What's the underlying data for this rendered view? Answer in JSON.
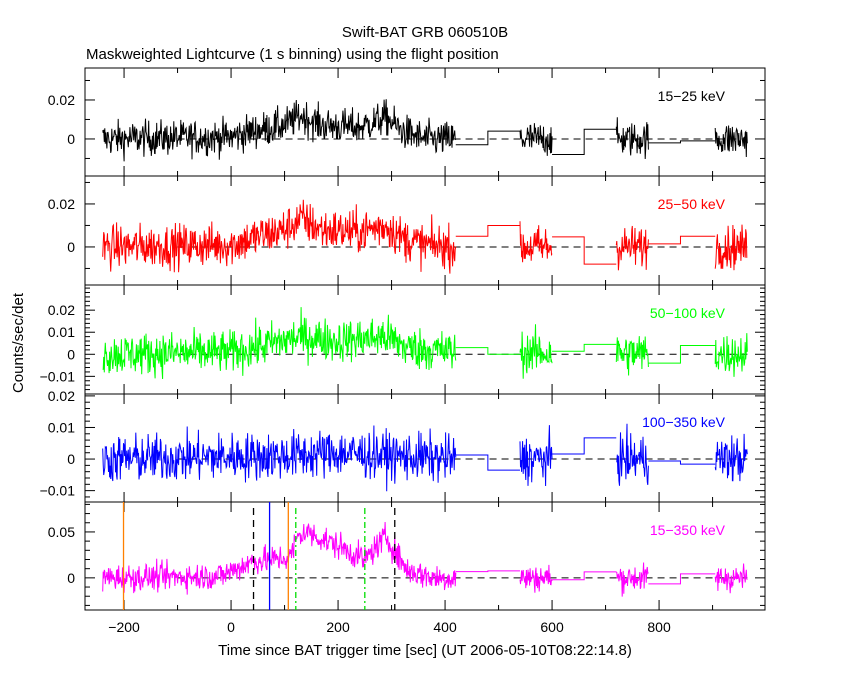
{
  "chart_data": {
    "type": "line",
    "title": "Swift-BAT GRB 060510B",
    "subtitle": "Maskweighted Lightcurve (1 s binning) using the flight position",
    "xlabel": "Time since BAT trigger time [sec] (UT 2006-05-10T08:22:14.8)",
    "ylabel": "Counts/sec/det",
    "xlim": [
      -273,
      998
    ],
    "x_major_ticks": [
      -200,
      0,
      200,
      400,
      600,
      800
    ],
    "x_tick_labels": [
      "−200",
      "0",
      "200",
      "400",
      "600",
      "800"
    ],
    "x_minor_step": 100,
    "binning_sec": 1,
    "data_chunks": [
      [
        -240,
        420
      ],
      [
        540,
        600
      ],
      [
        720,
        780
      ],
      [
        905,
        965
      ]
    ],
    "zero_line_range": [
      -100,
      965
    ],
    "panels": [
      {
        "label": "15−25 keV",
        "color": "#000000",
        "ylim": [
          -0.019,
          0.0364
        ],
        "y_major_ticks": [
          0,
          0.02
        ],
        "y_tick_labels": [
          "0",
          "0.02"
        ],
        "y_minor_step": 0.01,
        "profile": [
          [
            -240,
            0
          ],
          [
            0,
            0.001
          ],
          [
            40,
            0.004
          ],
          [
            100,
            0.007
          ],
          [
            130,
            0.012
          ],
          [
            170,
            0.007
          ],
          [
            240,
            0.006
          ],
          [
            290,
            0.011
          ],
          [
            320,
            0.004
          ],
          [
            360,
            0
          ],
          [
            420,
            0
          ],
          [
            965,
            0
          ]
        ],
        "noise": 0.0045,
        "steps": [
          [
            420,
            480,
            -0.003
          ],
          [
            480,
            540,
            0.004
          ],
          [
            600,
            660,
            -0.008
          ],
          [
            660,
            720,
            0.005
          ],
          [
            780,
            840,
            -0.002
          ],
          [
            840,
            905,
            -0.001
          ]
        ]
      },
      {
        "label": "25−50 keV",
        "color": "#ff0000",
        "ylim": [
          -0.0177,
          0.033
        ],
        "y_major_ticks": [
          0,
          0.02
        ],
        "y_tick_labels": [
          "0",
          "0.02"
        ],
        "y_minor_step": 0.01,
        "profile": [
          [
            -240,
            0
          ],
          [
            0,
            0.001
          ],
          [
            40,
            0.004
          ],
          [
            100,
            0.008
          ],
          [
            130,
            0.013
          ],
          [
            170,
            0.008
          ],
          [
            240,
            0.007
          ],
          [
            290,
            0.01
          ],
          [
            320,
            0.004
          ],
          [
            360,
            0.001
          ],
          [
            420,
            0
          ],
          [
            965,
            0
          ]
        ],
        "noise": 0.005,
        "steps": [
          [
            420,
            480,
            0.005
          ],
          [
            480,
            540,
            0.01
          ],
          [
            600,
            660,
            0.0047
          ],
          [
            660,
            720,
            -0.008
          ],
          [
            780,
            840,
            0.0014
          ],
          [
            840,
            905,
            0.005
          ]
        ]
      },
      {
        "label": "50−100 keV",
        "color": "#00ff00",
        "ylim": [
          -0.018,
          0.0314
        ],
        "y_major_ticks": [
          -0.01,
          0,
          0.01,
          0.02
        ],
        "y_tick_labels": [
          "−0.01",
          "0",
          "0.01",
          "0.02"
        ],
        "y_minor_step": 0.002,
        "profile": [
          [
            -240,
            0
          ],
          [
            0,
            0.001
          ],
          [
            60,
            0.004
          ],
          [
            130,
            0.008
          ],
          [
            200,
            0.006
          ],
          [
            290,
            0.008
          ],
          [
            330,
            0.003
          ],
          [
            420,
            0.001
          ],
          [
            965,
            0
          ]
        ],
        "noise": 0.0048,
        "steps": [
          [
            420,
            480,
            0.003
          ],
          [
            480,
            540,
            0
          ],
          [
            600,
            660,
            0.0014
          ],
          [
            660,
            720,
            0.0045
          ],
          [
            780,
            840,
            -0.004
          ],
          [
            840,
            905,
            0.004
          ]
        ]
      },
      {
        "label": "100−350 keV",
        "color": "#0000ff",
        "ylim": [
          -0.0136,
          0.0206
        ],
        "y_major_ticks": [
          -0.01,
          0,
          0.01,
          0.02
        ],
        "y_tick_labels": [
          "−0.01",
          "0",
          "0.01",
          "0.02"
        ],
        "y_minor_step": 0.002,
        "profile": [
          [
            -240,
            0
          ],
          [
            100,
            0.001
          ],
          [
            200,
            0.002
          ],
          [
            300,
            0.001
          ],
          [
            420,
            0
          ],
          [
            965,
            0
          ]
        ],
        "noise": 0.0038,
        "steps": [
          [
            420,
            480,
            0.0013
          ],
          [
            480,
            540,
            -0.0035
          ],
          [
            600,
            660,
            0.0016
          ],
          [
            660,
            720,
            0.0067
          ],
          [
            780,
            840,
            -0.0006
          ],
          [
            840,
            905,
            -0.0016
          ]
        ]
      },
      {
        "label": "15−350 keV",
        "color": "#ff00ff",
        "ylim": [
          -0.035,
          0.0826
        ],
        "y_major_ticks": [
          0,
          0.05
        ],
        "y_tick_labels": [
          "0",
          "0.05"
        ],
        "y_minor_step": 0.01,
        "profile": [
          [
            -240,
            0
          ],
          [
            -20,
            0.002
          ],
          [
            40,
            0.018
          ],
          [
            110,
            0.022
          ],
          [
            125,
            0.045
          ],
          [
            140,
            0.05
          ],
          [
            200,
            0.035
          ],
          [
            250,
            0.02
          ],
          [
            290,
            0.045
          ],
          [
            305,
            0.03
          ],
          [
            330,
            0.008
          ],
          [
            380,
            0
          ],
          [
            420,
            0
          ],
          [
            965,
            0
          ]
        ],
        "noise": 0.0075,
        "steps": [
          [
            420,
            480,
            0.0068
          ],
          [
            480,
            540,
            0.0076
          ],
          [
            600,
            660,
            -0.002
          ],
          [
            660,
            720,
            0.0065
          ],
          [
            780,
            840,
            -0.0065
          ],
          [
            840,
            905,
            0.0043
          ]
        ]
      }
    ],
    "markers": [
      {
        "t": -201,
        "color": "#ff8000",
        "style": "solid",
        "span": "full"
      },
      {
        "t": 42,
        "color": "#000000",
        "style": "dashed",
        "span": "partial"
      },
      {
        "t": 72,
        "color": "#0000ff",
        "style": "solid",
        "span": "full"
      },
      {
        "t": 107,
        "color": "#ff8000",
        "style": "solid",
        "span": "full"
      },
      {
        "t": 121,
        "color": "#00dd00",
        "style": "dashdot",
        "span": "partial"
      },
      {
        "t": 250,
        "color": "#00dd00",
        "style": "dashdot",
        "span": "partial"
      },
      {
        "t": 306,
        "color": "#000000",
        "style": "dashed",
        "span": "partial"
      }
    ]
  }
}
